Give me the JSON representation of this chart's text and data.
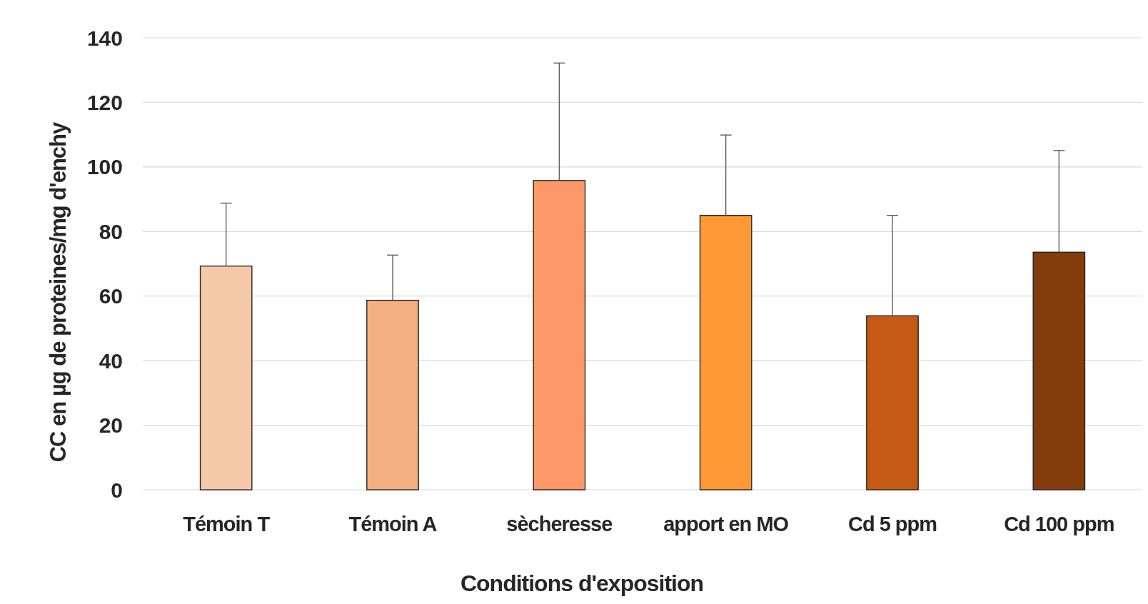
{
  "chart_data": {
    "type": "bar",
    "xlabel": "Conditions d'exposition",
    "ylabel": "CC en µg de proteines/mg d'enchy",
    "categories": [
      "Témoin T",
      "Témoin A",
      "sècheresse",
      "apport en MO",
      "Cd 5 ppm",
      "Cd 100 ppm"
    ],
    "values": [
      69.3,
      58.7,
      95.8,
      85.0,
      53.9,
      73.6
    ],
    "colors": [
      "#f6c9a9",
      "#f3b083",
      "#fe9866",
      "#fd9a36",
      "#c55a14",
      "#843c0c"
    ],
    "errors": [
      [
        69.3,
        88.8
      ],
      [
        58.7,
        72.7
      ],
      [
        95.8,
        132.2
      ],
      [
        85.0,
        109.9
      ],
      [
        53.9,
        85.0
      ],
      [
        73.6,
        105.1
      ]
    ],
    "ylim": [
      0,
      140
    ],
    "yticks": [
      0,
      20,
      40,
      60,
      80,
      100,
      120,
      140
    ],
    "grid": "y"
  }
}
